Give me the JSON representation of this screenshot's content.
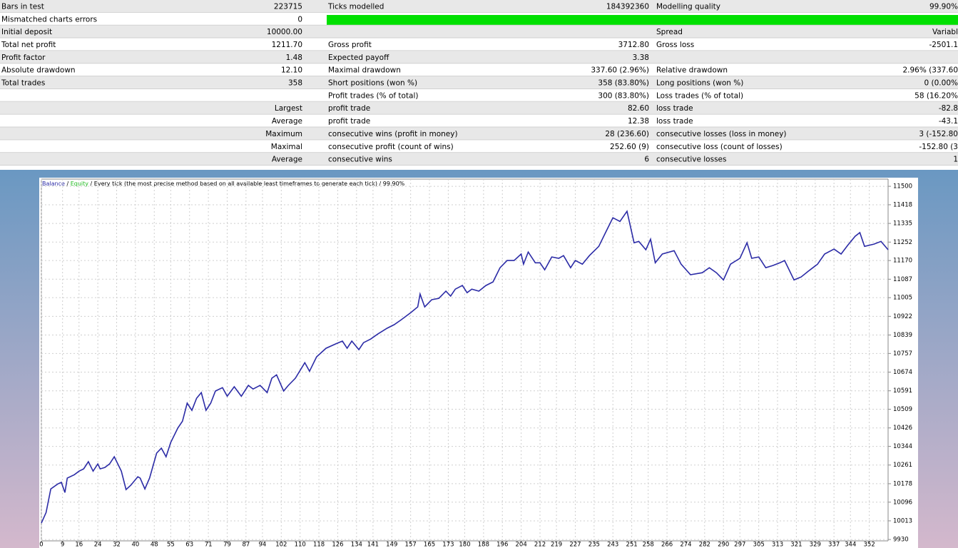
{
  "table": {
    "rows": [
      {
        "label": "Bars in test",
        "value": "223715",
        "label2": "Ticks modelled",
        "value2": "184392360",
        "label3": "Modelling quality",
        "value3": "99.90%"
      },
      {
        "label": "Mismatched charts errors",
        "value": "0"
      },
      {
        "label": "Initial deposit",
        "value": "10000.00",
        "label3": "Spread",
        "value3": "Variabl"
      },
      {
        "label": "Total net profit",
        "value": "1211.70",
        "label2": "Gross profit",
        "value2": "3712.80",
        "label3": "Gross loss",
        "value3": "-2501.1"
      },
      {
        "label": "Profit factor",
        "value": "1.48",
        "label2": "Expected payoff",
        "value2": "3.38"
      },
      {
        "label": "Absolute drawdown",
        "value": "12.10",
        "label2": "Maximal drawdown",
        "value2": "337.60 (2.96%)",
        "label3": "Relative drawdown",
        "value3": "2.96% (337.60"
      },
      {
        "label": "Total trades",
        "value": "358",
        "label2": "Short positions (won %)",
        "value2": "358 (83.80%)",
        "label3": "Long positions (won %)",
        "value3": "0 (0.00%"
      },
      {
        "label2": "Profit trades (% of total)",
        "value2": "300 (83.80%)",
        "label3": "Loss trades (% of total)",
        "value3": "58 (16.20%"
      },
      {
        "side": "Largest",
        "label2": "profit trade",
        "value2": "82.60",
        "label3": "loss trade",
        "value3": "-82.8"
      },
      {
        "side": "Average",
        "label2": "profit trade",
        "value2": "12.38",
        "label3": "loss trade",
        "value3": "-43.1"
      },
      {
        "side": "Maximum",
        "label2": "consecutive wins (profit in money)",
        "value2": "28 (236.60)",
        "label3": "consecutive losses (loss in money)",
        "value3": "3 (-152.80"
      },
      {
        "side": "Maximal",
        "label2": "consecutive profit (count of wins)",
        "value2": "252.60 (9)",
        "label3": "consecutive loss (count of losses)",
        "value3": "-152.80 (3"
      },
      {
        "side": "Average",
        "label2": "consecutive wins",
        "value2": "6",
        "label3": "consecutive losses",
        "value3": "1"
      }
    ]
  },
  "chart_data": {
    "type": "line",
    "equity_label": "Equity",
    "separator": "/",
    "subtitle": "/ Every tick (the most precise method based on all available least timeframes to generate each tick) / 99.90%",
    "x": [
      0,
      2,
      4,
      7,
      8.5,
      10,
      11,
      14,
      16,
      18,
      20,
      22,
      24,
      25,
      27,
      29,
      31,
      34,
      36,
      38,
      41,
      42,
      44,
      46,
      49,
      51,
      53,
      55,
      58,
      60,
      62,
      64,
      66,
      68,
      70,
      72,
      74,
      77,
      79,
      82,
      85,
      88,
      90,
      93,
      96,
      98,
      100,
      103,
      105,
      108,
      112,
      114,
      117,
      121,
      125,
      128,
      130,
      132,
      135,
      137,
      140,
      143,
      147,
      150,
      153,
      157,
      160,
      161,
      163,
      166,
      169,
      172,
      174,
      176,
      179,
      181,
      183,
      186,
      189,
      192,
      195,
      198,
      201,
      204,
      205,
      207,
      210,
      212,
      214,
      217,
      220,
      222,
      225,
      227,
      230,
      233,
      237,
      240,
      243,
      246,
      249,
      252,
      254,
      257,
      259,
      261,
      264,
      269,
      272,
      276,
      281,
      284,
      287,
      290,
      293,
      297,
      300,
      302,
      305,
      308,
      311,
      314,
      316,
      320,
      323,
      326,
      330,
      333,
      337,
      340,
      343,
      346,
      348,
      350,
      354,
      357,
      360
    ],
    "series": [
      {
        "name": "Balance",
        "color": "#2b2ba6",
        "values": [
          10003,
          10050,
          10155,
          10177,
          10184,
          10139,
          10203,
          10218,
          10234,
          10244,
          10276,
          10234,
          10266,
          10244,
          10250,
          10266,
          10298,
          10234,
          10152,
          10171,
          10209,
          10203,
          10155,
          10203,
          10314,
          10336,
          10298,
          10361,
          10425,
          10456,
          10536,
          10504,
          10558,
          10583,
          10504,
          10536,
          10590,
          10605,
          10567,
          10609,
          10567,
          10615,
          10599,
          10615,
          10583,
          10647,
          10662,
          10590,
          10615,
          10647,
          10716,
          10678,
          10742,
          10780,
          10799,
          10812,
          10780,
          10812,
          10774,
          10805,
          10821,
          10843,
          10869,
          10885,
          10907,
          10938,
          10964,
          11021,
          10964,
          10996,
          11002,
          11034,
          11012,
          11043,
          11059,
          11027,
          11043,
          11034,
          11059,
          11075,
          11138,
          11170,
          11170,
          11199,
          11154,
          11208,
          11160,
          11160,
          11129,
          11186,
          11180,
          11192,
          11138,
          11170,
          11154,
          11192,
          11233,
          11297,
          11360,
          11344,
          11389,
          11249,
          11255,
          11218,
          11265,
          11160,
          11199,
          11214,
          11154,
          11107,
          11116,
          11138,
          11116,
          11084,
          11154,
          11180,
          11249,
          11180,
          11186,
          11138,
          11148,
          11160,
          11170,
          11084,
          11097,
          11122,
          11154,
          11199,
          11221,
          11199,
          11240,
          11278,
          11294,
          11233,
          11243,
          11255,
          11218
        ]
      }
    ],
    "equity_color": "#22bb22",
    "xlim": [
      0,
      360
    ],
    "ylim": [
      9924,
      11532
    ],
    "xticks": [
      0,
      9,
      16,
      24,
      32,
      40,
      48,
      55,
      63,
      71,
      79,
      87,
      94,
      102,
      110,
      118,
      126,
      134,
      141,
      149,
      157,
      165,
      173,
      180,
      188,
      196,
      204,
      212,
      219,
      227,
      235,
      243,
      251,
      258,
      266,
      274,
      282,
      290,
      297,
      305,
      313,
      321,
      329,
      337,
      344,
      352
    ],
    "yticks": [
      11500,
      11418,
      11335,
      11252,
      11170,
      11087,
      11005,
      10922,
      10839,
      10757,
      10674,
      10591,
      10509,
      10426,
      10344,
      10261,
      10178,
      10096,
      10013,
      9930
    ],
    "grid": true
  }
}
